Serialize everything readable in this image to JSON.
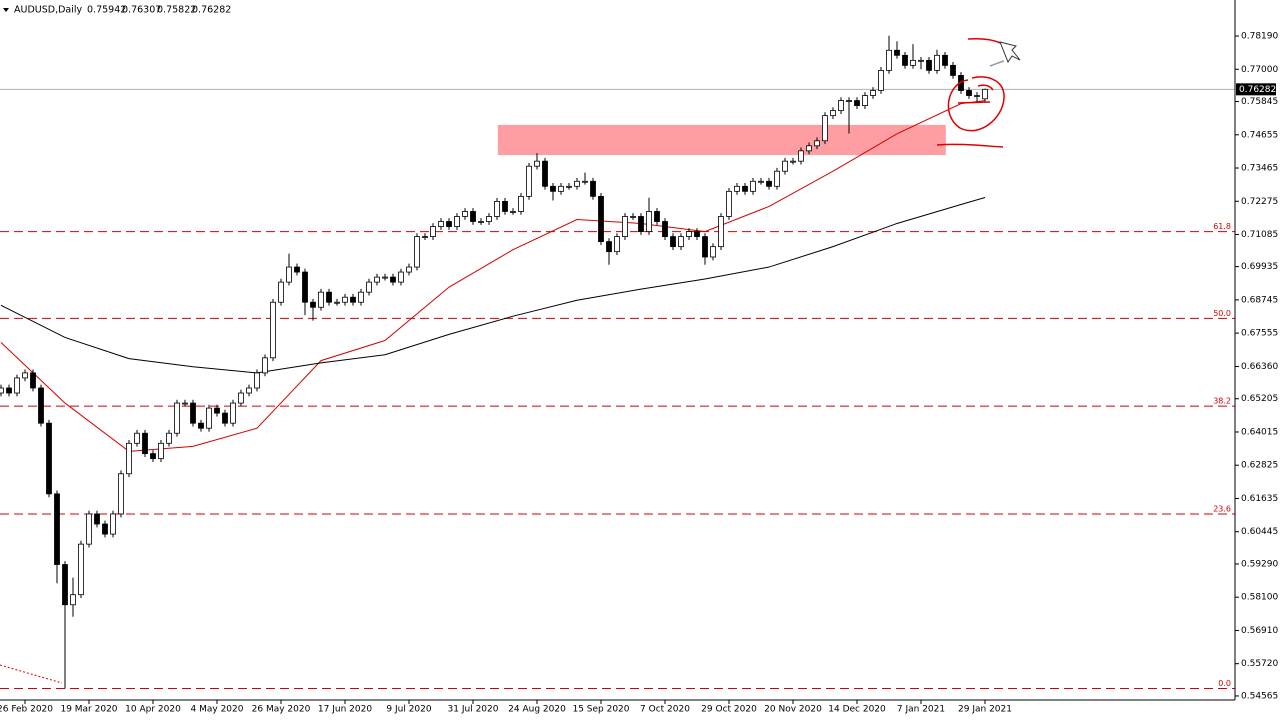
{
  "chart_data": {
    "type": "candlestick",
    "symbol": "AUDUSD,Daily",
    "categories": [
      null,
      null,
      null,
      "26 Feb 2020",
      null,
      null,
      null,
      null,
      null,
      null,
      null,
      "19 Mar 2020",
      null,
      null,
      null,
      null,
      null,
      null,
      null,
      "10 Apr 2020",
      null,
      null,
      null,
      null,
      null,
      null,
      null,
      "4 May 2020",
      null,
      null,
      null,
      null,
      null,
      null,
      null,
      "26 May 2020",
      null,
      null,
      null,
      null,
      null,
      null,
      null,
      "17 Jun 2020",
      null,
      null,
      null,
      null,
      null,
      null,
      null,
      "9 Jul 2020",
      null,
      null,
      null,
      null,
      null,
      null,
      null,
      "31 Jul 2020",
      null,
      null,
      null,
      null,
      null,
      null,
      null,
      "24 Aug 2020",
      null,
      null,
      null,
      null,
      null,
      null,
      null,
      "15 Sep 2020",
      null,
      null,
      null,
      null,
      null,
      null,
      null,
      "7 Oct 2020",
      null,
      null,
      null,
      null,
      null,
      null,
      null,
      "29 Oct 2020",
      null,
      null,
      null,
      null,
      null,
      null,
      null,
      "20 Nov 2020",
      null,
      null,
      null,
      null,
      null,
      null,
      null,
      "14 Dec 2020",
      null,
      null,
      null,
      null,
      null,
      null,
      null,
      "7 Jan 2021",
      null,
      null,
      null,
      null,
      null,
      null,
      null,
      "29 Jan 2021"
    ],
    "open": [
      0.6541,
      0.6559,
      0.6541,
      0.6595,
      0.6613,
      0.6559,
      0.6433,
      0.618,
      0.5927,
      0.5783,
      0.5819,
      0.6,
      0.6108,
      0.6072,
      0.6036,
      0.6108,
      0.6252,
      0.6361,
      0.6397,
      0.6324,
      0.6306,
      0.6361,
      0.6397,
      0.6505,
      0.6505,
      0.6433,
      0.6415,
      0.6487,
      0.6469,
      0.6433,
      0.6505,
      0.6541,
      0.6559,
      0.6613,
      0.6667,
      0.6866,
      0.6938,
      0.6992,
      0.6974,
      0.6866,
      0.6848,
      0.6902,
      0.6866,
      0.6866,
      0.6884,
      0.6866,
      0.6902,
      0.6938,
      0.6956,
      0.6956,
      0.6938,
      0.6974,
      0.6992,
      0.7101,
      0.7101,
      0.7137,
      0.7155,
      0.7137,
      0.7173,
      0.7191,
      0.7155,
      0.7155,
      0.7173,
      0.7227,
      0.7191,
      0.7191,
      0.7245,
      0.7353,
      0.7371,
      0.7281,
      0.7263,
      0.7281,
      0.7281,
      0.7299,
      0.7299,
      0.7245,
      0.7083,
      0.7047,
      0.7101,
      0.7173,
      0.7173,
      0.7119,
      0.7191,
      0.7155,
      0.7101,
      0.7065,
      0.7101,
      0.7119,
      0.7101,
      0.7028,
      0.7065,
      0.7173,
      0.7263,
      0.7281,
      0.7263,
      0.7299,
      0.7299,
      0.7281,
      0.7335,
      0.7371,
      0.7371,
      0.7408,
      0.7426,
      0.7444,
      0.7534,
      0.7552,
      0.7588,
      0.7588,
      0.757,
      0.7606,
      0.7624,
      0.7696,
      0.7768,
      0.775,
      0.7714,
      0.7732,
      0.7732,
      0.7696,
      0.775,
      0.7714,
      0.7678,
      0.7624,
      0.7606,
      0.75942
    ],
    "high": [
      0.6571,
      0.6571,
      0.6607,
      0.6625,
      0.6625,
      0.6571,
      0.6445,
      0.6192,
      0.5939,
      0.588,
      0.6012,
      0.612,
      0.612,
      0.6084,
      0.612,
      0.6264,
      0.6373,
      0.6409,
      0.6409,
      0.6336,
      0.6373,
      0.6409,
      0.6517,
      0.6517,
      0.6517,
      0.6445,
      0.6499,
      0.6499,
      0.6481,
      0.6517,
      0.6553,
      0.6571,
      0.6625,
      0.6679,
      0.6878,
      0.695,
      0.704,
      0.7004,
      0.6986,
      0.6878,
      0.6914,
      0.6914,
      0.6878,
      0.6896,
      0.6896,
      0.6914,
      0.695,
      0.6968,
      0.6968,
      0.6968,
      0.6986,
      0.7004,
      0.7113,
      0.7113,
      0.7149,
      0.7167,
      0.7167,
      0.7185,
      0.7203,
      0.7203,
      0.7167,
      0.7185,
      0.7239,
      0.7239,
      0.7203,
      0.7257,
      0.7365,
      0.74,
      0.7383,
      0.7293,
      0.7293,
      0.7293,
      0.7311,
      0.733,
      0.7311,
      0.7257,
      0.7095,
      0.7113,
      0.7185,
      0.7185,
      0.7185,
      0.724,
      0.7203,
      0.7167,
      0.7113,
      0.7113,
      0.7131,
      0.7131,
      0.7113,
      0.7077,
      0.7185,
      0.7275,
      0.7293,
      0.7293,
      0.7311,
      0.7311,
      0.7311,
      0.7347,
      0.7383,
      0.7383,
      0.742,
      0.7438,
      0.7456,
      0.7546,
      0.7564,
      0.76,
      0.76,
      0.76,
      0.7618,
      0.7636,
      0.7708,
      0.782,
      0.78,
      0.7762,
      0.779,
      0.7744,
      0.7744,
      0.777,
      0.7762,
      0.7726,
      0.769,
      0.7636,
      0.7618,
      0.76307
    ],
    "low": [
      0.6529,
      0.6529,
      0.6529,
      0.6583,
      0.6547,
      0.6421,
      0.6168,
      0.586,
      0.5483,
      0.574,
      0.5807,
      0.5988,
      0.606,
      0.6024,
      0.6024,
      0.6096,
      0.624,
      0.6349,
      0.6312,
      0.6294,
      0.6294,
      0.6349,
      0.6385,
      0.6493,
      0.6421,
      0.6403,
      0.6403,
      0.6457,
      0.6421,
      0.6421,
      0.6493,
      0.6529,
      0.6547,
      0.6601,
      0.6655,
      0.6854,
      0.6926,
      0.6962,
      0.682,
      0.68,
      0.6836,
      0.6854,
      0.6854,
      0.6854,
      0.6854,
      0.6854,
      0.689,
      0.6926,
      0.6944,
      0.6926,
      0.6926,
      0.6962,
      0.698,
      0.7089,
      0.7089,
      0.7125,
      0.7125,
      0.7125,
      0.7161,
      0.7143,
      0.7143,
      0.7143,
      0.7161,
      0.7179,
      0.7179,
      0.7179,
      0.7233,
      0.7341,
      0.7269,
      0.723,
      0.7251,
      0.7269,
      0.7269,
      0.7287,
      0.7233,
      0.7071,
      0.7,
      0.7035,
      0.7089,
      0.7161,
      0.7107,
      0.7107,
      0.7143,
      0.7089,
      0.7053,
      0.7053,
      0.7089,
      0.7089,
      0.7,
      0.7016,
      0.7053,
      0.7161,
      0.7251,
      0.7251,
      0.7251,
      0.7287,
      0.7269,
      0.7269,
      0.7323,
      0.7359,
      0.7359,
      0.7396,
      0.7414,
      0.7432,
      0.7522,
      0.754,
      0.747,
      0.7558,
      0.7558,
      0.7594,
      0.7612,
      0.7684,
      0.7738,
      0.7702,
      0.7702,
      0.77,
      0.7684,
      0.7684,
      0.7702,
      0.7666,
      0.7612,
      0.7594,
      0.758,
      0.75822
    ],
    "close": [
      0.6559,
      0.6541,
      0.6595,
      0.6613,
      0.6559,
      0.6433,
      0.618,
      0.5927,
      0.5783,
      0.5819,
      0.6,
      0.6108,
      0.6072,
      0.6036,
      0.6108,
      0.6252,
      0.6361,
      0.6397,
      0.6324,
      0.6306,
      0.6361,
      0.6397,
      0.6505,
      0.6505,
      0.6433,
      0.6415,
      0.6487,
      0.6469,
      0.6433,
      0.6505,
      0.6541,
      0.6559,
      0.6613,
      0.6667,
      0.6866,
      0.6938,
      0.6992,
      0.6974,
      0.6866,
      0.6848,
      0.6902,
      0.6866,
      0.6866,
      0.6884,
      0.6866,
      0.6902,
      0.6938,
      0.6956,
      0.6956,
      0.6938,
      0.6974,
      0.6992,
      0.7101,
      0.7101,
      0.7137,
      0.7155,
      0.7137,
      0.7173,
      0.7191,
      0.7155,
      0.7155,
      0.7173,
      0.7227,
      0.7191,
      0.7191,
      0.7245,
      0.7353,
      0.7371,
      0.7281,
      0.7263,
      0.7281,
      0.7281,
      0.7299,
      0.7299,
      0.7245,
      0.7083,
      0.7047,
      0.7101,
      0.7173,
      0.7173,
      0.7119,
      0.7191,
      0.7155,
      0.7101,
      0.7065,
      0.7101,
      0.7119,
      0.7101,
      0.7028,
      0.7065,
      0.7173,
      0.7263,
      0.7281,
      0.7263,
      0.7299,
      0.7299,
      0.7281,
      0.7335,
      0.7371,
      0.7371,
      0.7408,
      0.7426,
      0.7444,
      0.7534,
      0.7552,
      0.7588,
      0.7588,
      0.757,
      0.7606,
      0.7624,
      0.7696,
      0.7768,
      0.775,
      0.7714,
      0.7732,
      0.7732,
      0.7696,
      0.775,
      0.7714,
      0.7678,
      0.7624,
      0.7606,
      0.7606,
      0.76282
    ],
    "up_color": "#ffffff",
    "down_color": "#000000",
    "candle_outline": "#000000",
    "series": [
      {
        "color": "#d40000",
        "x": [
          0,
          8,
          16,
          24,
          32,
          40,
          48,
          56,
          64,
          72,
          80,
          88,
          96,
          104,
          112,
          120,
          123
        ],
        "values": [
          0.6722,
          0.6505,
          0.6332,
          0.635,
          0.6415,
          0.6657,
          0.6729,
          0.692,
          0.7054,
          0.7162,
          0.7148,
          0.7119,
          0.7209,
          0.7335,
          0.7469,
          0.7577,
          0.7588
        ]
      },
      {
        "color": "#000000",
        "x": [
          0,
          8,
          16,
          24,
          32,
          40,
          48,
          56,
          64,
          72,
          80,
          88,
          96,
          104,
          112,
          120,
          123
        ],
        "values": [
          0.6855,
          0.674,
          0.6664,
          0.6635,
          0.6613,
          0.6649,
          0.6678,
          0.6751,
          0.6816,
          0.6873,
          0.6913,
          0.6949,
          0.6992,
          0.7065,
          0.7148,
          0.7216,
          0.7241
        ]
      }
    ],
    "levels": [
      {
        "value": 0.7119,
        "label": "61.8"
      },
      {
        "value": 0.6808,
        "label": "50.0"
      },
      {
        "value": 0.6494,
        "label": "38.2"
      },
      {
        "value": 0.6108,
        "label": "23.6"
      },
      {
        "value": 0.5483,
        "label": "0.0"
      }
    ],
    "level_color": "#d40000",
    "zone": {
      "x": [
        62.1,
        118.1
      ],
      "ylim": [
        0.7393,
        0.7501
      ],
      "color": "#ff9ea2"
    },
    "ylim": [
      0.5442,
      0.7948
    ],
    "yticks": [
      {
        "value": 0.7819,
        "label": "0.78190"
      },
      {
        "value": 0.77,
        "label": "0.77000"
      },
      {
        "value": 0.75845,
        "label": "0.75845"
      },
      {
        "value": 0.74655,
        "label": "0.74655"
      },
      {
        "value": 0.73465,
        "label": "0.73465"
      },
      {
        "value": 0.72275,
        "label": "0.72275"
      },
      {
        "value": 0.71085,
        "label": "0.71085"
      },
      {
        "value": 0.69935,
        "label": "0.69935"
      },
      {
        "value": 0.68745,
        "label": "0.68745"
      },
      {
        "value": 0.67555,
        "label": "0.67555"
      },
      {
        "value": 0.6636,
        "label": "0.66360"
      },
      {
        "value": 0.65205,
        "label": "0.65205"
      },
      {
        "value": 0.64015,
        "label": "0.64015"
      },
      {
        "value": 0.62825,
        "label": "0.62825"
      },
      {
        "value": 0.61635,
        "label": "0.61635"
      },
      {
        "value": 0.60445,
        "label": "0.60445"
      },
      {
        "value": 0.5929,
        "label": "0.59290"
      },
      {
        "value": 0.581,
        "label": "0.58100"
      },
      {
        "value": 0.5691,
        "label": "0.56910"
      },
      {
        "value": 0.5572,
        "label": "0.55720"
      },
      {
        "value": 0.54565,
        "label": "0.54565"
      }
    ]
  }
}
